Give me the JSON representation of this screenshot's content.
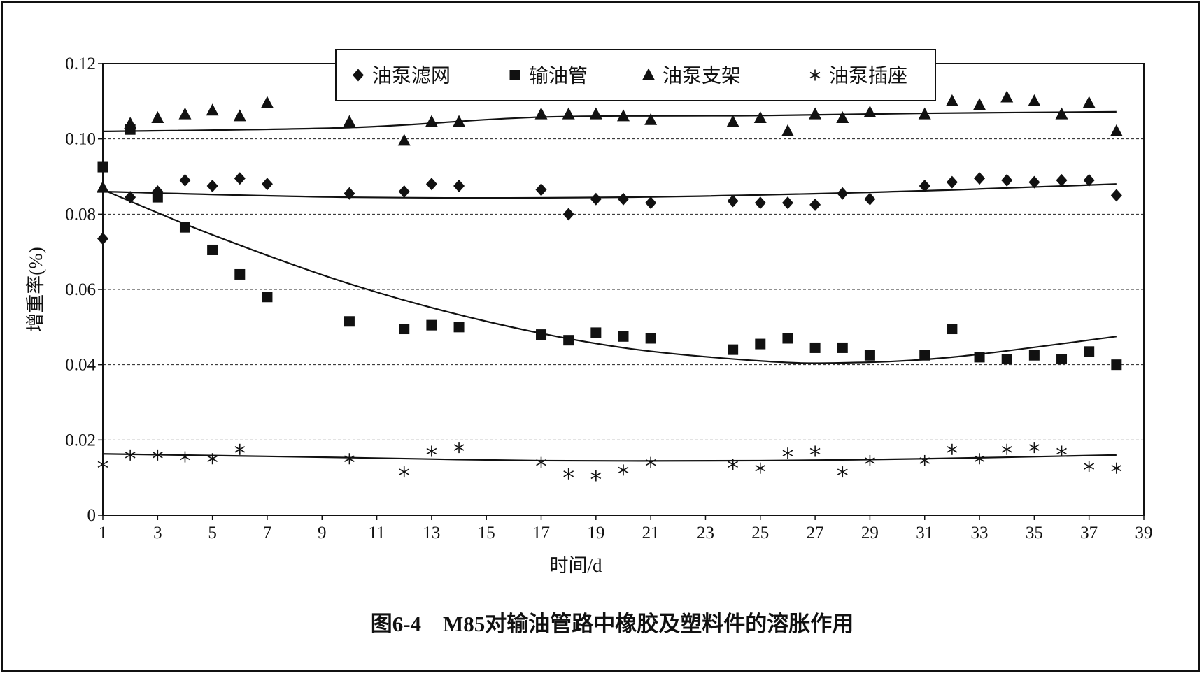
{
  "caption": "图6-4　M85对输油管路中橡胶及塑料件的溶胀作用",
  "chart_data": {
    "type": "scatter",
    "title": "",
    "xlabel": "时间/d",
    "ylabel": "增重率(%)",
    "xlim": [
      1,
      39
    ],
    "ylim": [
      0,
      0.12
    ],
    "x_ticks": [
      "1",
      "3",
      "5",
      "7",
      "9",
      "11",
      "13",
      "15",
      "17",
      "19",
      "21",
      "23",
      "25",
      "27",
      "29",
      "31",
      "33",
      "35",
      "37",
      "39"
    ],
    "y_ticks": [
      "0",
      "0.02",
      "0.04",
      "0.06",
      "0.08",
      "0.10",
      "0.12"
    ],
    "grid": "horizontal dashed",
    "legend_position": "top",
    "series": [
      {
        "name": "油泵滤网",
        "marker": "diamond",
        "x": [
          1,
          2,
          3,
          4,
          5,
          6,
          7,
          10,
          12,
          13,
          14,
          17,
          18,
          19,
          20,
          21,
          24,
          25,
          26,
          27,
          28,
          29,
          31,
          32,
          33,
          34,
          35,
          36,
          37,
          38
        ],
        "y": [
          0.0735,
          0.0845,
          0.086,
          0.089,
          0.0875,
          0.0895,
          0.088,
          0.0855,
          0.086,
          0.088,
          0.0875,
          0.0865,
          0.08,
          0.084,
          0.084,
          0.083,
          0.0835,
          0.083,
          0.083,
          0.0825,
          0.0855,
          0.084,
          0.0875,
          0.0885,
          0.0895,
          0.089,
          0.0885,
          0.089,
          0.089,
          0.085
        ],
        "trend": {
          "x": [
            1,
            10,
            20,
            30,
            38
          ],
          "y": [
            0.086,
            0.0845,
            0.0845,
            0.086,
            0.088
          ]
        }
      },
      {
        "name": "输油管",
        "marker": "square",
        "x": [
          1,
          2,
          3,
          4,
          5,
          6,
          7,
          10,
          12,
          13,
          14,
          17,
          18,
          19,
          20,
          21,
          24,
          25,
          26,
          27,
          28,
          29,
          31,
          32,
          33,
          34,
          35,
          36,
          37,
          38
        ],
        "y": [
          0.0925,
          0.1025,
          0.0845,
          0.0765,
          0.0705,
          0.064,
          0.058,
          0.0515,
          0.0495,
          0.0505,
          0.05,
          0.048,
          0.0465,
          0.0485,
          0.0475,
          0.047,
          0.044,
          0.0455,
          0.047,
          0.0445,
          0.0445,
          0.0425,
          0.0425,
          0.0495,
          0.042,
          0.0415,
          0.0425,
          0.0415,
          0.0435,
          0.04
        ],
        "trend": {
          "x": [
            1,
            5,
            10,
            15,
            20,
            25,
            28,
            32,
            38
          ],
          "y": [
            0.0865,
            0.0745,
            0.0615,
            0.0515,
            0.0445,
            0.041,
            0.0405,
            0.042,
            0.0475
          ]
        }
      },
      {
        "name": "油泵支架",
        "marker": "triangle",
        "x": [
          1,
          2,
          3,
          4,
          5,
          6,
          7,
          10,
          12,
          13,
          14,
          17,
          18,
          19,
          20,
          21,
          24,
          25,
          26,
          27,
          28,
          29,
          31,
          32,
          33,
          34,
          35,
          36,
          37,
          38
        ],
        "y": [
          0.087,
          0.104,
          0.1055,
          0.1065,
          0.1075,
          0.106,
          0.1095,
          0.1045,
          0.0995,
          0.1045,
          0.1045,
          0.1065,
          0.1065,
          0.1065,
          0.106,
          0.105,
          0.1045,
          0.1055,
          0.102,
          0.1065,
          0.1055,
          0.107,
          0.1065,
          0.11,
          0.109,
          0.111,
          0.11,
          0.1065,
          0.1095,
          0.102
        ],
        "trend": {
          "x": [
            1,
            10,
            17,
            25,
            31,
            38
          ],
          "y": [
            0.102,
            0.103,
            0.1058,
            0.1062,
            0.1068,
            0.1072
          ]
        }
      },
      {
        "name": "油泵插座",
        "marker": "asterisk",
        "x": [
          1,
          2,
          3,
          4,
          5,
          6,
          10,
          12,
          13,
          14,
          17,
          18,
          19,
          20,
          21,
          24,
          25,
          26,
          27,
          28,
          29,
          31,
          32,
          33,
          34,
          35,
          36,
          37,
          38
        ],
        "y": [
          0.0135,
          0.016,
          0.016,
          0.0155,
          0.015,
          0.0175,
          0.015,
          0.0115,
          0.017,
          0.018,
          0.014,
          0.011,
          0.0105,
          0.012,
          0.014,
          0.0135,
          0.0125,
          0.0165,
          0.017,
          0.0115,
          0.0145,
          0.0145,
          0.0175,
          0.015,
          0.0175,
          0.018,
          0.017,
          0.013,
          0.0125
        ],
        "trend": {
          "x": [
            1,
            10,
            17,
            25,
            31,
            38
          ],
          "y": [
            0.0163,
            0.0153,
            0.0145,
            0.0145,
            0.015,
            0.016
          ]
        }
      }
    ]
  }
}
